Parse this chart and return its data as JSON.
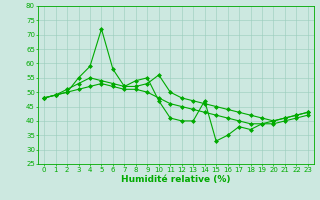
{
  "x": [
    0,
    1,
    2,
    3,
    4,
    5,
    6,
    7,
    8,
    9,
    10,
    11,
    12,
    13,
    14,
    15,
    16,
    17,
    18,
    19,
    20,
    21,
    22,
    23
  ],
  "line1": [
    48,
    49,
    50,
    55,
    59,
    72,
    58,
    52,
    54,
    55,
    47,
    41,
    40,
    40,
    47,
    33,
    35,
    38,
    37,
    39,
    40,
    41,
    42,
    43
  ],
  "line2": [
    48,
    49,
    50,
    51,
    52,
    53,
    52,
    51,
    51,
    50,
    48,
    46,
    45,
    44,
    43,
    42,
    41,
    40,
    39,
    39,
    39,
    40,
    41,
    42
  ],
  "line3": [
    48,
    49,
    51,
    53,
    55,
    54,
    53,
    52,
    52,
    53,
    56,
    50,
    48,
    47,
    46,
    45,
    44,
    43,
    42,
    41,
    40,
    41,
    42,
    43
  ],
  "line_color": "#00aa00",
  "bg_color": "#cce8e0",
  "grid_color": "#99ccbb",
  "xlabel": "Humidité relative (%)",
  "ylim": [
    25,
    80
  ],
  "yticks": [
    25,
    30,
    35,
    40,
    45,
    50,
    55,
    60,
    65,
    70,
    75,
    80
  ],
  "xticks": [
    0,
    1,
    2,
    3,
    4,
    5,
    6,
    7,
    8,
    9,
    10,
    11,
    12,
    13,
    14,
    15,
    16,
    17,
    18,
    19,
    20,
    21,
    22,
    23
  ],
  "marker": "D",
  "markersize": 2,
  "linewidth": 0.8,
  "tick_fontsize": 5,
  "xlabel_fontsize": 6.5
}
